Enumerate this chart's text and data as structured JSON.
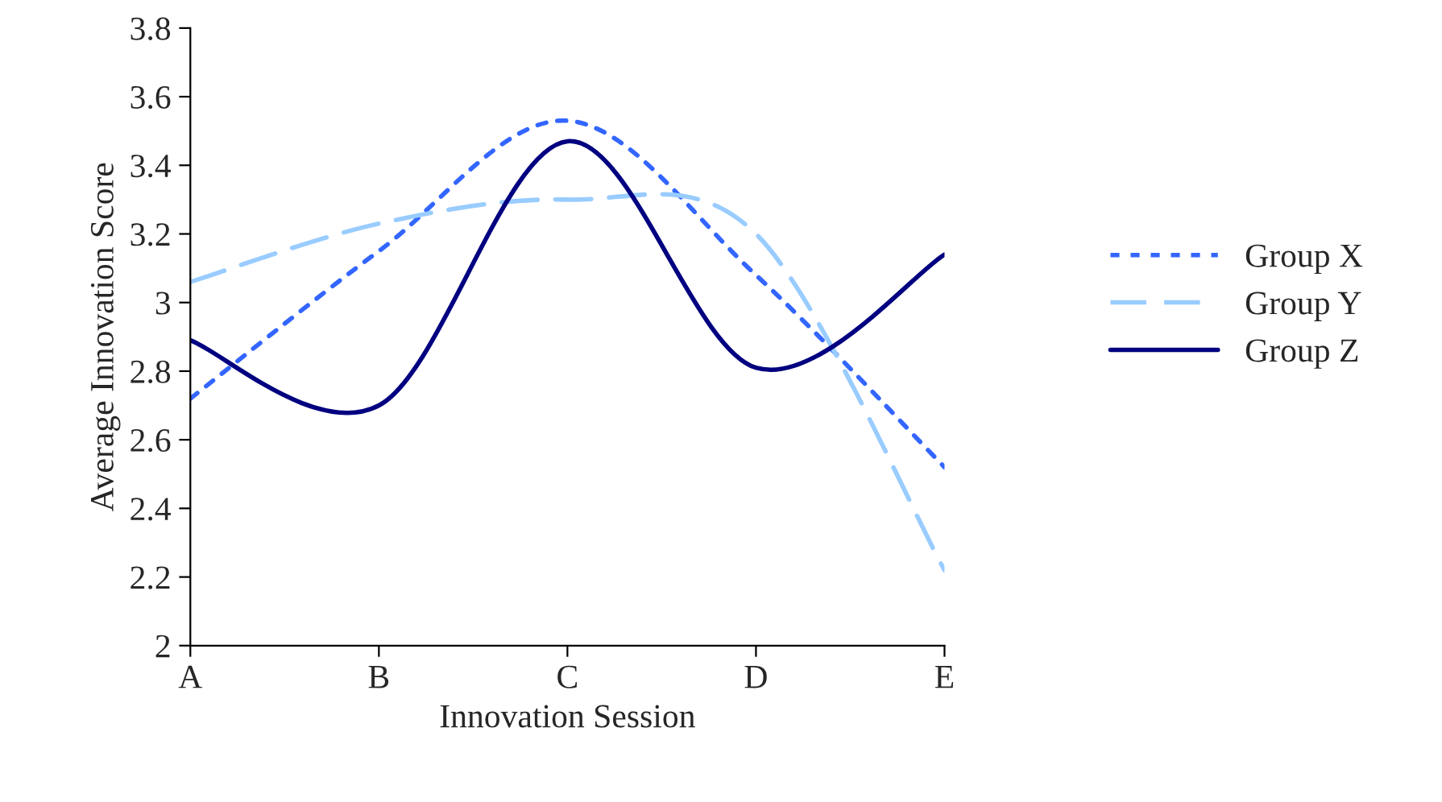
{
  "chart_data": {
    "type": "line",
    "xlabel": "Innovation Session",
    "ylabel": "Average Innovation Score",
    "categories": [
      "A",
      "B",
      "C",
      "D",
      "E"
    ],
    "series": [
      {
        "name": "Group X",
        "color": "#3366ff",
        "line_style": "dotted",
        "values": [
          2.72,
          3.15,
          3.53,
          3.08,
          2.52
        ]
      },
      {
        "name": "Group Y",
        "color": "#99ccff",
        "line_style": "dashed",
        "values": [
          3.06,
          3.23,
          3.3,
          3.2,
          2.22
        ]
      },
      {
        "name": "Group Z",
        "color": "#000080",
        "line_style": "solid",
        "values": [
          2.89,
          2.7,
          3.47,
          2.81,
          3.14
        ]
      }
    ],
    "ylim": [
      2,
      3.8
    ],
    "yticks": [
      2,
      2.2,
      2.4,
      2.6,
      2.8,
      3,
      3.2,
      3.4,
      3.6,
      3.8
    ],
    "grid": false,
    "legend": "right",
    "marker": "none"
  }
}
